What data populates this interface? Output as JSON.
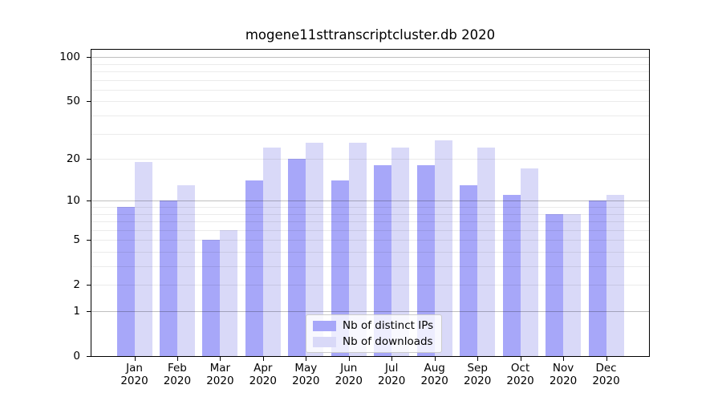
{
  "title": "mogene11sttranscriptcluster.db 2020",
  "chart_data": {
    "type": "bar",
    "title": "mogene11sttranscriptcluster.db 2020",
    "categories": [
      "Jan",
      "Feb",
      "Mar",
      "Apr",
      "May",
      "Jun",
      "Jul",
      "Aug",
      "Sep",
      "Oct",
      "Nov",
      "Dec"
    ],
    "x_year_label": "2020",
    "series": [
      {
        "name": "Nb of distinct IPs",
        "color": "#a7a7f9",
        "values": [
          9,
          10,
          5,
          14,
          20,
          14,
          18,
          18,
          13,
          11,
          8,
          10
        ]
      },
      {
        "name": "Nb of downloads",
        "color": "#d9d9f8",
        "values": [
          19,
          13,
          6,
          24,
          26,
          26,
          24,
          27,
          24,
          17,
          8,
          11
        ]
      }
    ],
    "yscale": "log1p",
    "ylim": [
      0,
      112
    ],
    "yticks": [
      0,
      1,
      2,
      5,
      10,
      20,
      50,
      100
    ],
    "yticks_minor": [
      3,
      4,
      6,
      7,
      8,
      9,
      30,
      40,
      60,
      70,
      80,
      90
    ],
    "grid": "horizontal",
    "legend_position": "lower center inside plot"
  }
}
